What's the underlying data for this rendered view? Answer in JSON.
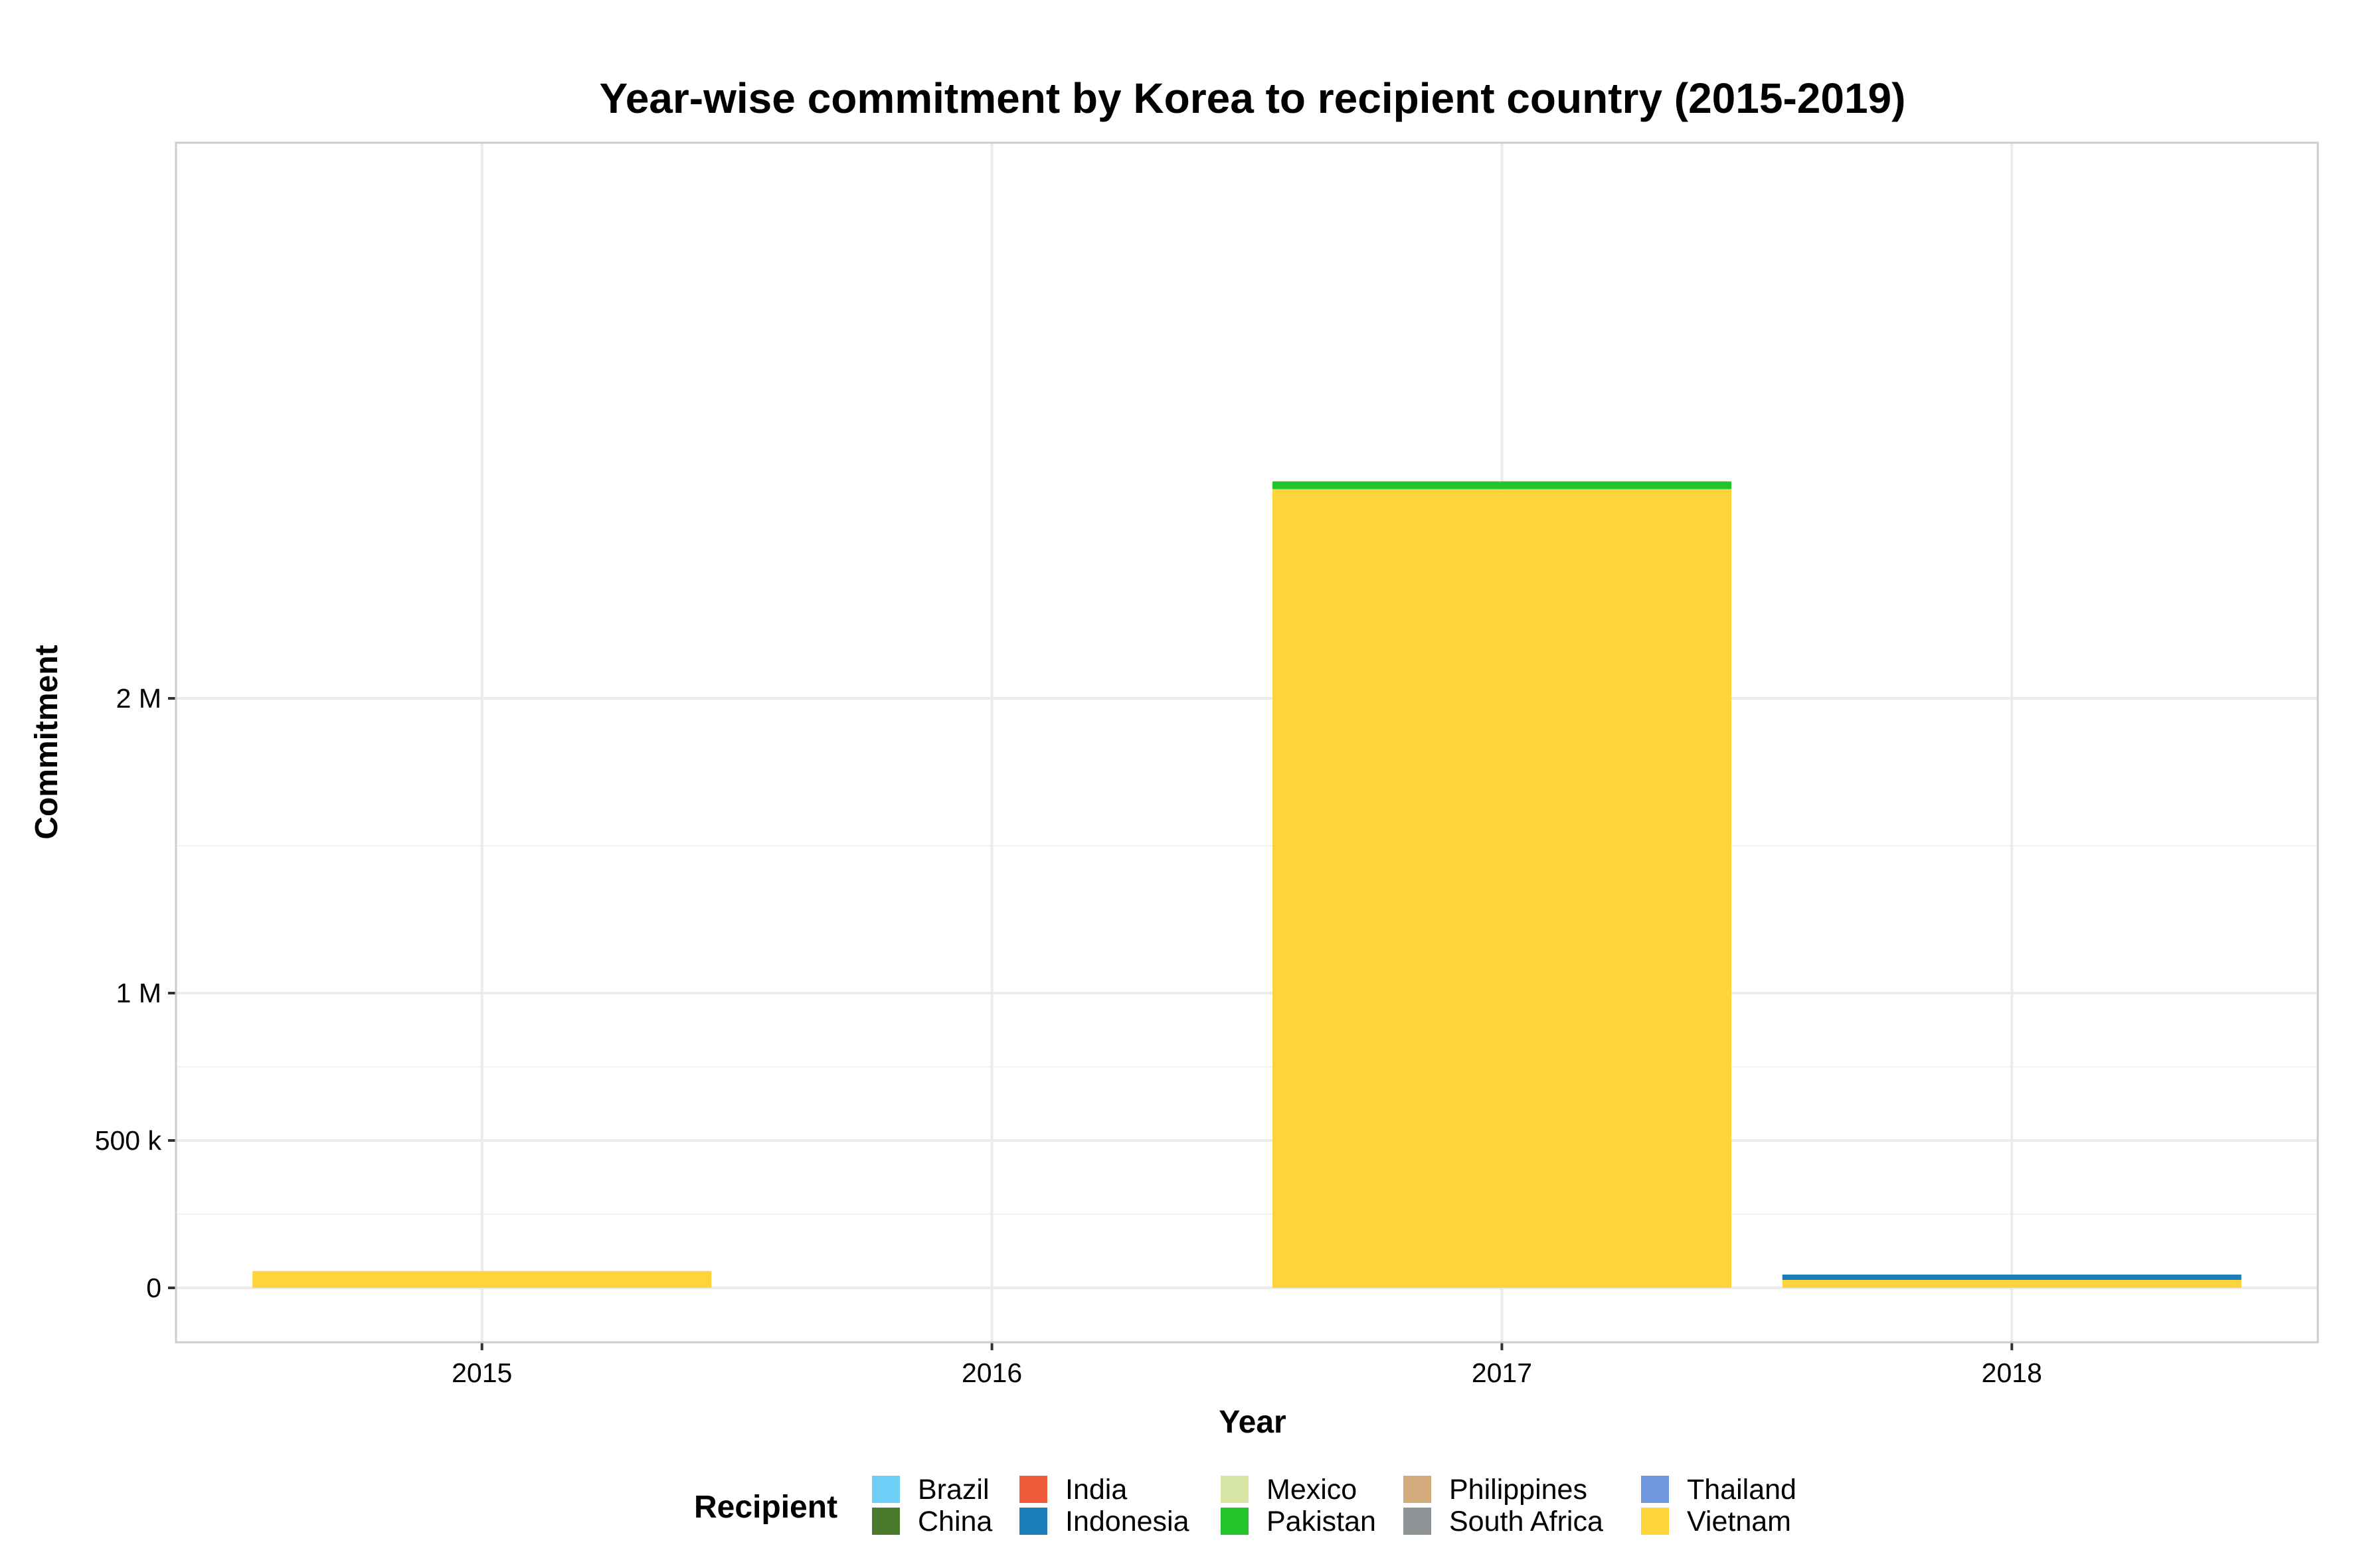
{
  "chart_data": {
    "type": "bar",
    "stacked": true,
    "title": "Year-wise commitment by Korea to recipient country (2015-2019)",
    "xlabel": "Year",
    "ylabel": "Commitment",
    "categories": [
      "2015",
      "2016",
      "2017",
      "2018"
    ],
    "ylim": [
      -90000,
      2900000
    ],
    "yticks": [
      {
        "value": 0,
        "label": "0"
      },
      {
        "value": 500000,
        "label": "500 k"
      },
      {
        "value": 1000000,
        "label": "1 M"
      },
      {
        "value": 2000000,
        "label": "2 M"
      }
    ],
    "grid": true,
    "legend": {
      "title": "Recipient",
      "position": "bottom",
      "items": [
        {
          "name": "Brazil",
          "color": "#6ECFF6"
        },
        {
          "name": "China",
          "color": "#4A7A2C"
        },
        {
          "name": "India",
          "color": "#EE5A3A"
        },
        {
          "name": "Indonesia",
          "color": "#1B7DB8"
        },
        {
          "name": "Mexico",
          "color": "#D7E6A6"
        },
        {
          "name": "Pakistan",
          "color": "#21C42A"
        },
        {
          "name": "Philippines",
          "color": "#D3AC7E"
        },
        {
          "name": "South Africa",
          "color": "#8E9396"
        },
        {
          "name": "Thailand",
          "color": "#7098E0"
        },
        {
          "name": "Vietnam",
          "color": "#FDD43A"
        }
      ]
    },
    "series": [
      {
        "name": "Vietnam",
        "color": "#FDD43A",
        "values": [
          57000,
          0,
          2710000,
          27000
        ]
      },
      {
        "name": "Indonesia",
        "color": "#1B7DB8",
        "values": [
          0,
          0,
          0,
          18000
        ]
      },
      {
        "name": "Pakistan",
        "color": "#21C42A",
        "values": [
          0,
          0,
          26000,
          0
        ]
      }
    ]
  }
}
